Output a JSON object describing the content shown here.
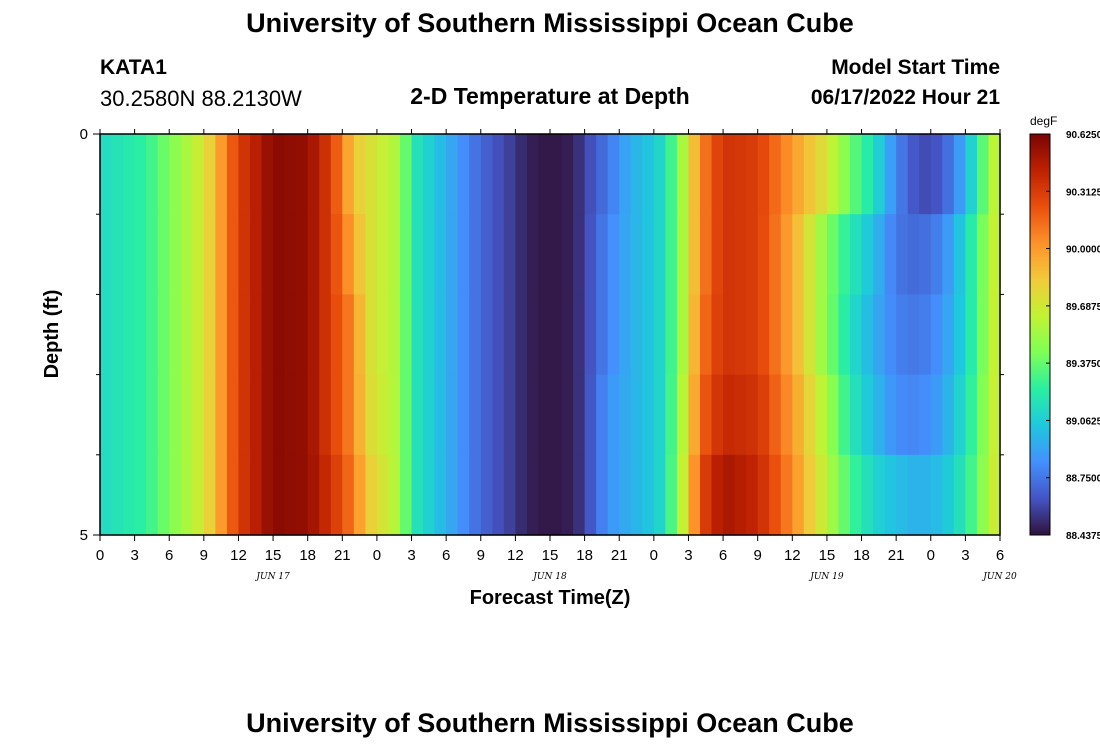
{
  "header": {
    "title": "University of Southern Mississippi Ocean Cube",
    "station_name": "KATA1",
    "station_coords": "30.2580N  88.2130W",
    "subtitle": "2-D Temperature at Depth",
    "start_label": "Model Start Time",
    "start_value": "06/17/2022 Hour 21"
  },
  "footer": {
    "title": "University of Southern Mississippi Ocean Cube"
  },
  "chart_data": {
    "type": "heatmap",
    "title": "2-D Temperature at Depth",
    "xlabel": "Forecast Time(Z)",
    "ylabel": "Depth (ft)",
    "x_tick_labels": [
      "0",
      "3",
      "6",
      "9",
      "12",
      "15",
      "18",
      "21",
      "0",
      "3",
      "6",
      "9",
      "12",
      "15",
      "18",
      "21",
      "0",
      "3",
      "6",
      "9",
      "12",
      "15",
      "18",
      "21",
      "0",
      "3",
      "6"
    ],
    "day_labels": [
      {
        "label": "JUN 17",
        "hour": 15
      },
      {
        "label": "JUN 18",
        "hour": 39
      },
      {
        "label": "JUN 19",
        "hour": 63
      },
      {
        "label": "JUN 20",
        "hour": 78
      }
    ],
    "xlim": [
      0,
      78
    ],
    "ylim": [
      0,
      5
    ],
    "y_tick_labels": [
      "0",
      "5"
    ],
    "y_minor_ticks": [
      1,
      2,
      3,
      4
    ],
    "colorbar": {
      "unit": "degF",
      "min": 88.4375,
      "max": 90.625,
      "labels": [
        "90.6250",
        "90.3125",
        "90.0000",
        "89.6875",
        "89.3750",
        "89.0625",
        "88.7500",
        "88.4375"
      ]
    },
    "depth_layers": [
      0,
      1,
      2,
      3,
      4
    ],
    "hour_keyframes": [
      0,
      4,
      9,
      12,
      15,
      18,
      20,
      22,
      23,
      26,
      27,
      30,
      33,
      36,
      37,
      39,
      41,
      42,
      44,
      46,
      48,
      49,
      51,
      52,
      54,
      57,
      60,
      63,
      65,
      67,
      69,
      71,
      73,
      75,
      78
    ],
    "values": [
      [
        89.12,
        89.25,
        89.7,
        90.3,
        90.58,
        90.55,
        90.3,
        89.85,
        89.75,
        89.55,
        89.2,
        88.95,
        88.7,
        88.55,
        88.48,
        88.45,
        88.48,
        88.58,
        88.75,
        88.95,
        89.05,
        89.15,
        89.7,
        90.05,
        90.35,
        90.3,
        90.0,
        89.7,
        89.4,
        89.15,
        88.8,
        88.6,
        88.65,
        88.95,
        89.75
      ],
      [
        89.12,
        89.25,
        89.7,
        90.3,
        90.58,
        90.55,
        90.3,
        89.95,
        89.75,
        89.55,
        89.2,
        88.95,
        88.7,
        88.55,
        88.48,
        88.45,
        88.48,
        88.58,
        88.8,
        88.95,
        89.05,
        89.15,
        89.7,
        90.05,
        90.35,
        90.3,
        89.95,
        89.45,
        89.2,
        89.0,
        88.75,
        88.7,
        88.8,
        89.1,
        89.75
      ],
      [
        89.12,
        89.25,
        89.7,
        90.3,
        90.58,
        90.55,
        90.3,
        90.05,
        89.75,
        89.55,
        89.2,
        88.95,
        88.7,
        88.55,
        88.48,
        88.45,
        88.48,
        88.58,
        88.8,
        88.95,
        89.05,
        89.15,
        89.7,
        90.1,
        90.35,
        90.3,
        89.95,
        89.45,
        89.15,
        88.95,
        88.78,
        88.75,
        88.85,
        89.1,
        89.75
      ],
      [
        89.12,
        89.25,
        89.7,
        90.3,
        90.58,
        90.55,
        90.3,
        90.05,
        89.78,
        89.55,
        89.2,
        88.95,
        88.7,
        88.55,
        88.48,
        88.45,
        88.48,
        88.58,
        88.85,
        88.95,
        89.05,
        89.15,
        89.75,
        90.15,
        90.4,
        90.35,
        90.0,
        89.55,
        89.2,
        89.0,
        88.82,
        88.8,
        88.9,
        89.15,
        89.75
      ],
      [
        89.12,
        89.25,
        89.7,
        90.3,
        90.58,
        90.55,
        90.35,
        90.1,
        89.85,
        89.55,
        89.2,
        88.95,
        88.7,
        88.55,
        88.48,
        88.45,
        88.48,
        88.58,
        88.85,
        88.95,
        89.05,
        89.15,
        89.8,
        90.25,
        90.5,
        90.4,
        90.05,
        89.6,
        89.3,
        89.1,
        89.0,
        88.95,
        89.0,
        89.2,
        89.75
      ]
    ]
  },
  "colors": {
    "turbo_stops": [
      "#30123b",
      "#4454c4",
      "#4490fe",
      "#1fc8de",
      "#29efa2",
      "#7dff56",
      "#c1f334",
      "#f1ca3a",
      "#fe922a",
      "#ea4f0d",
      "#be2102",
      "#7a0403"
    ]
  }
}
